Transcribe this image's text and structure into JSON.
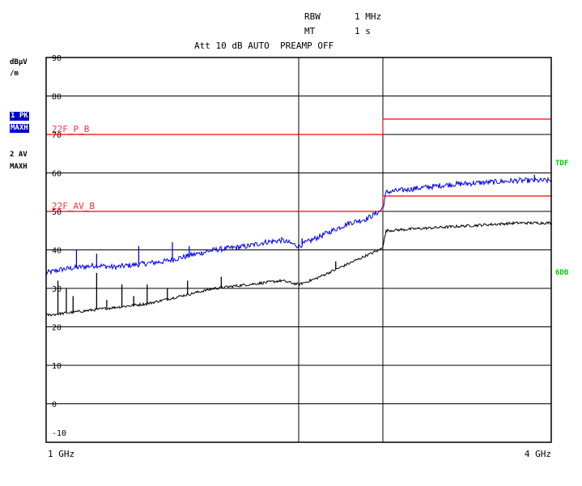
{
  "header": {
    "rbw_label": "RBW",
    "rbw_value": "1 MHz",
    "mt_label": "MT",
    "mt_value": "1 s",
    "att_line": "Att 10 dB AUTO  PREAMP OFF"
  },
  "side": {
    "unit_line1": "dBµV",
    "unit_line2": "/m",
    "trace1_label": "1 PK",
    "trace1_mode": "MAXH",
    "trace2_label": "2 AV",
    "trace2_mode": "MAXH",
    "right_label_top": "TDF",
    "right_label_bottom": "6DB"
  },
  "colors": {
    "peak_trace": "#0000ee",
    "avg_trace": "#000000",
    "limit_lines": "#ff0000",
    "limit_text": "#ff3333",
    "grid": "#000000",
    "green_labels": "#00cc00"
  },
  "chart_data": {
    "type": "line",
    "x_scale": "linear",
    "xlim_ghz": [
      1,
      4
    ],
    "x_tick_labels": [
      "1 GHz",
      "4 GHz"
    ],
    "ylim": [
      -10,
      90
    ],
    "y_ticks": [
      90,
      80,
      70,
      60,
      50,
      40,
      30,
      20,
      10,
      0,
      -10
    ],
    "extra_vertical_lines_ghz": [
      2.5,
      3.0
    ],
    "limit_lines": [
      {
        "name": "22F_P_B",
        "points": [
          [
            1,
            70
          ],
          [
            3.0,
            70
          ],
          [
            3.0,
            74
          ],
          [
            4,
            74
          ]
        ]
      },
      {
        "name": "22F_AV_B",
        "points": [
          [
            1,
            50
          ],
          [
            3.0,
            50
          ],
          [
            3.0,
            54
          ],
          [
            4,
            54
          ]
        ]
      }
    ],
    "series": [
      {
        "name": "1 PK MAXH",
        "x": [
          1.0,
          1.1,
          1.2,
          1.3,
          1.4,
          1.5,
          1.6,
          1.7,
          1.8,
          1.9,
          2.0,
          2.1,
          2.2,
          2.3,
          2.4,
          2.5,
          2.6,
          2.7,
          2.8,
          2.9,
          2.98,
          3.0,
          3.02,
          3.2,
          3.4,
          3.6,
          3.8,
          4.0
        ],
        "values": [
          34,
          35,
          35.5,
          36,
          35.5,
          36,
          36.5,
          37,
          38,
          39,
          40,
          40.5,
          41,
          42,
          42.5,
          41,
          43,
          45,
          47,
          48,
          50,
          51,
          55,
          56,
          57,
          57.5,
          58,
          58
        ],
        "spikes": [
          {
            "x": 1.18,
            "value": 40
          },
          {
            "x": 1.3,
            "value": 39
          },
          {
            "x": 1.55,
            "value": 41
          },
          {
            "x": 1.75,
            "value": 42
          },
          {
            "x": 1.85,
            "value": 41
          },
          {
            "x": 2.52,
            "value": 43
          },
          {
            "x": 3.9,
            "value": 59.5
          }
        ]
      },
      {
        "name": "2 AV MAXH",
        "x": [
          1.0,
          1.1,
          1.2,
          1.3,
          1.4,
          1.5,
          1.6,
          1.7,
          1.8,
          1.9,
          2.0,
          2.1,
          2.2,
          2.3,
          2.4,
          2.5,
          2.6,
          2.7,
          2.8,
          2.9,
          2.98,
          3.0,
          3.02,
          3.2,
          3.4,
          3.6,
          3.8,
          4.0
        ],
        "values": [
          23,
          23.5,
          24,
          24.5,
          25,
          25.5,
          26,
          27,
          28,
          29,
          30,
          30.5,
          31,
          31.5,
          32,
          31,
          32.5,
          34.5,
          36.5,
          38.5,
          40,
          41,
          45,
          45.5,
          46,
          46.5,
          47,
          47
        ],
        "spikes": [
          {
            "x": 1.07,
            "value": 32
          },
          {
            "x": 1.12,
            "value": 30
          },
          {
            "x": 1.16,
            "value": 28
          },
          {
            "x": 1.3,
            "value": 34
          },
          {
            "x": 1.36,
            "value": 27
          },
          {
            "x": 1.45,
            "value": 31
          },
          {
            "x": 1.52,
            "value": 28
          },
          {
            "x": 1.6,
            "value": 31
          },
          {
            "x": 1.72,
            "value": 30
          },
          {
            "x": 1.84,
            "value": 32
          },
          {
            "x": 2.04,
            "value": 33
          },
          {
            "x": 2.72,
            "value": 37
          }
        ]
      }
    ]
  }
}
